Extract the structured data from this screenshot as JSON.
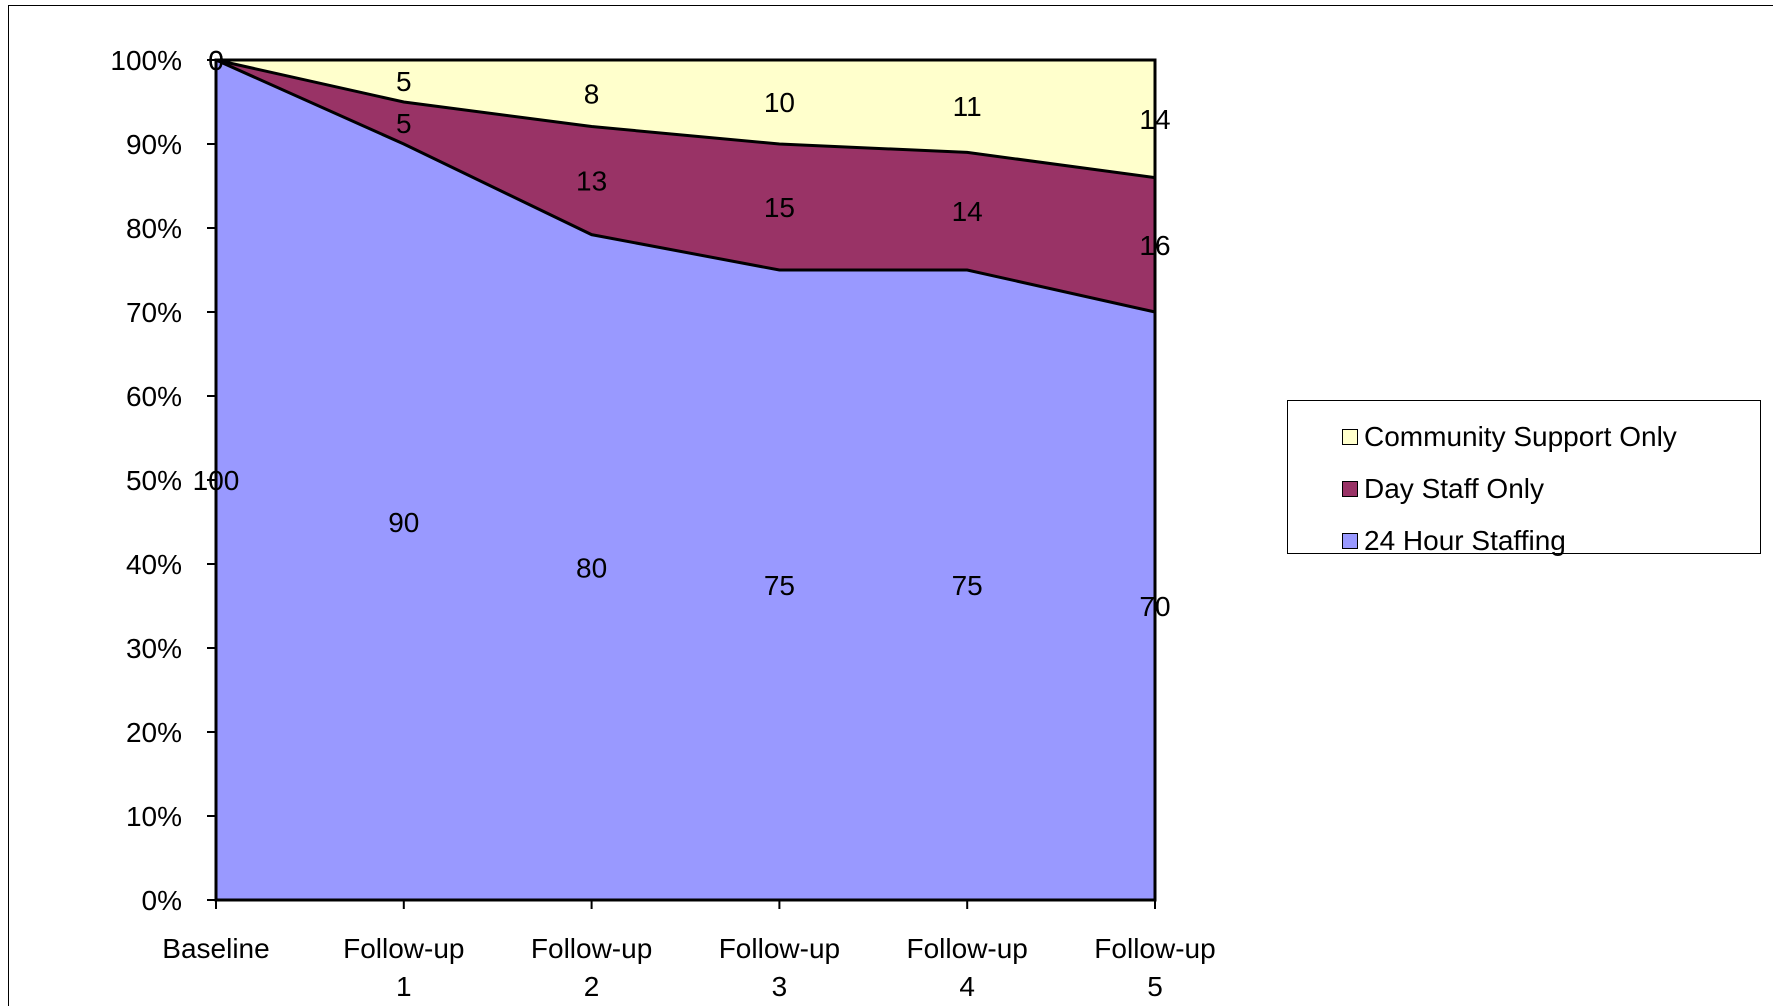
{
  "chart_data": {
    "type": "area",
    "stacked": "percent",
    "title": "",
    "xlabel": "",
    "ylabel": "",
    "ylim": [
      0,
      100
    ],
    "yticks": [
      "0%",
      "10%",
      "20%",
      "30%",
      "40%",
      "50%",
      "60%",
      "70%",
      "80%",
      "90%",
      "100%"
    ],
    "categories": [
      [
        "Baseline"
      ],
      [
        "Follow-up",
        "1"
      ],
      [
        "Follow-up",
        "2"
      ],
      [
        "Follow-up",
        "3"
      ],
      [
        "Follow-up",
        "4"
      ],
      [
        "Follow-up",
        "5"
      ]
    ],
    "series": [
      {
        "name": "24 Hour Staffing",
        "values": [
          100,
          90,
          80,
          75,
          75,
          70
        ],
        "color": "#9999ff"
      },
      {
        "name": "Day Staff Only",
        "values": [
          0,
          5,
          13,
          15,
          14,
          16
        ],
        "color": "#993366"
      },
      {
        "name": "Community Support Only",
        "values": [
          0,
          5,
          8,
          10,
          11,
          14
        ],
        "color": "#ffffcc"
      }
    ],
    "data_labels": true,
    "legend": {
      "position": "right",
      "order": [
        "Community Support Only",
        "Day Staff Only",
        "24 Hour Staffing"
      ]
    },
    "grid": false
  }
}
